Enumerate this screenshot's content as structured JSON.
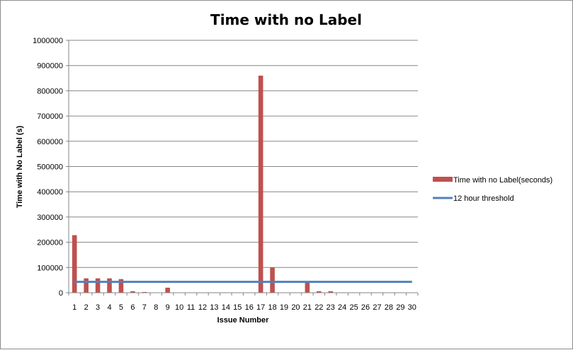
{
  "chart_data": {
    "type": "bar",
    "title": "Time with no Label",
    "xlabel": "Issue Number",
    "ylabel": "Time with No Label (s)",
    "categories": [
      "1",
      "2",
      "3",
      "4",
      "5",
      "6",
      "7",
      "8",
      "9",
      "10",
      "11",
      "12",
      "13",
      "14",
      "15",
      "16",
      "17",
      "18",
      "19",
      "20",
      "21",
      "22",
      "23",
      "24",
      "25",
      "26",
      "27",
      "28",
      "29",
      "30"
    ],
    "series": [
      {
        "name": "Time with no Label(seconds)",
        "type": "bar",
        "color": "#c0504d",
        "values": [
          228000,
          57000,
          57000,
          57000,
          54000,
          6000,
          3000,
          0,
          20000,
          0,
          0,
          0,
          0,
          0,
          0,
          0,
          860000,
          100000,
          0,
          0,
          40000,
          6000,
          6000,
          0,
          0,
          0,
          0,
          0,
          0,
          0
        ]
      },
      {
        "name": "12 hour threshold",
        "type": "line",
        "color": "#4f81bd",
        "values": [
          43200,
          43200,
          43200,
          43200,
          43200,
          43200,
          43200,
          43200,
          43200,
          43200,
          43200,
          43200,
          43200,
          43200,
          43200,
          43200,
          43200,
          43200,
          43200,
          43200,
          43200,
          43200,
          43200,
          43200,
          43200,
          43200,
          43200,
          43200,
          43200,
          43200
        ]
      }
    ],
    "ylim": [
      0,
      1000000
    ],
    "yticks": [
      0,
      100000,
      200000,
      300000,
      400000,
      500000,
      600000,
      700000,
      800000,
      900000,
      1000000
    ],
    "grid": true,
    "legend_position": "right"
  }
}
